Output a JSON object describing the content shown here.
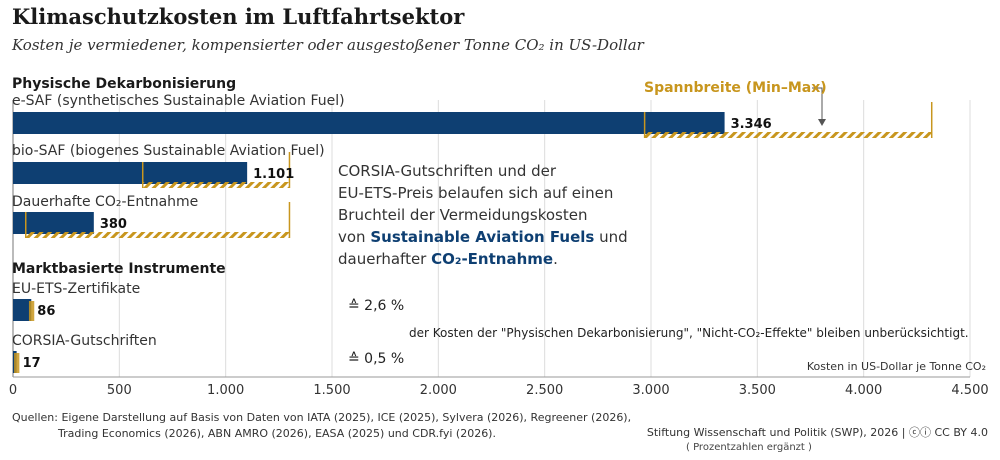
{
  "title": "Klimaschutzkosten im Luftfahrtsektor",
  "subtitle": "Kosten je vermiedener, kompensierter oder ausgestoßener Tonne CO₂ in US-Dollar",
  "section_physical": "Physische Dekarbonisierung",
  "section_market": "Marktbasierte Instrumente",
  "range_legend": "Spannbreite (Min–Max)",
  "note": {
    "line1": "CORSIA-Gutschriften und der",
    "line2": "EU-ETS-Preis belaufen sich auf einen",
    "line3": "Bruchteil der Vermeidungskosten",
    "line4_pre": "von ",
    "line4_bold": "Sustainable Aviation Fuels",
    "line4_post": " und",
    "line5_pre": "dauerhafter ",
    "line5_bold": "CO₂-Entnahme",
    "line5_post": "."
  },
  "percent_ets": "≙ 2,6 %",
  "percent_corsia": "≙ 0,5 %",
  "remark": "der Kosten der \"Physischen Dekarbonisierung\",  \"Nicht-CO₂-Effekte\" bleiben unberücksichtigt.",
  "unit_label": "Kosten in US-Dollar je Tonne CO₂",
  "sources_line1": "Quellen: Eigene Darstellung auf Basis von Daten von IATA (2025), ICE (2025), Sylvera (2026), Regreener (2026),",
  "sources_line2": "Trading Economics (2026), ABN AMRO (2026), EASA (2025) und CDR.fyi (2026).",
  "credit": "Stiftung Wissenschaft und Politik (SWP), 2026 | ⓒⓘ CC BY 4.0",
  "credit_note": "( Prozentzahlen ergänzt )",
  "colors": {
    "bar": "#0e3f72",
    "range": "#c8961e"
  },
  "chart_data": {
    "type": "bar",
    "orientation": "horizontal",
    "xlim": [
      0,
      4500
    ],
    "x_ticks": [
      0,
      500,
      1000,
      1500,
      2000,
      2500,
      3000,
      3500,
      4000,
      4500
    ],
    "x_tick_labels": [
      "0",
      "500",
      "1.000",
      "1.500",
      "2.000",
      "2.500",
      "3.000",
      "3.500",
      "4.000",
      "4.500"
    ],
    "grid": true,
    "categories": [
      "e-SAF (synthetisches Sustainable Aviation Fuel)",
      "bio-SAF (biogenes Sustainable Aviation Fuel)",
      "Dauerhafte CO₂-Entnahme",
      "EU-ETS-Zertifikate",
      "CORSIA-Gutschriften"
    ],
    "values": [
      3346,
      1101,
      380,
      86,
      17
    ],
    "value_labels": [
      "3.346",
      "1.101",
      "380",
      "86",
      "17"
    ],
    "ranges": [
      [
        2970,
        4320
      ],
      [
        610,
        1300
      ],
      [
        60,
        1300
      ],
      [
        75,
        100
      ],
      [
        5,
        30
      ]
    ]
  }
}
